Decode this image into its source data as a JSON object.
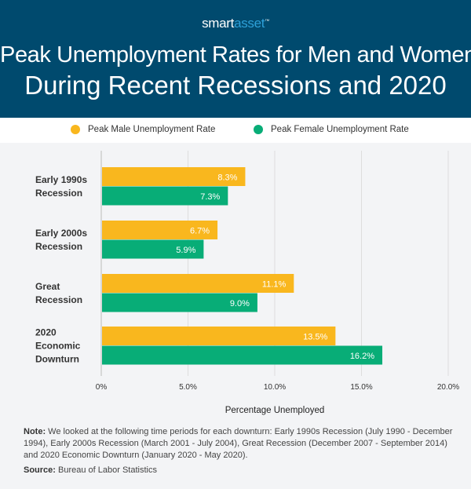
{
  "brand": {
    "part1": "smart",
    "part2": "asset",
    "tm": "™"
  },
  "title_line1": "Peak Unemployment Rates for Men and Women",
  "title_line2": "During Recent Recessions and 2020",
  "colors": {
    "male": "#f9b71e",
    "female": "#08ad77",
    "header": "#004a6e"
  },
  "chart_data": {
    "type": "bar",
    "orientation": "horizontal",
    "categories": [
      [
        "Early 1990s",
        "Recession"
      ],
      [
        "Early 2000s",
        "Recession"
      ],
      [
        "Great",
        "Recession"
      ],
      [
        "2020",
        "Economic",
        "Downturn"
      ]
    ],
    "series": [
      {
        "name": "Peak Male Unemployment Rate",
        "values": [
          8.3,
          6.7,
          11.1,
          13.5
        ],
        "labels": [
          "8.3%",
          "6.7%",
          "11.1%",
          "13.5%"
        ]
      },
      {
        "name": "Peak Female Unemployment Rate",
        "values": [
          7.3,
          5.9,
          9.0,
          16.2
        ],
        "labels": [
          "7.3%",
          "5.9%",
          "9.0%",
          "16.2%"
        ]
      }
    ],
    "xlim": [
      0,
      20
    ],
    "xticks": [
      0,
      5,
      10,
      15,
      20
    ],
    "xtick_labels": [
      "0%",
      "5.0%",
      "10.0%",
      "15.0%",
      "20.0%"
    ],
    "xlabel": "Percentage Unemployed",
    "grid": true,
    "legend_position": "top"
  },
  "note_label": "Note:",
  "note_text": " We looked at the following time periods for each downturn: Early 1990s Recession (July 1990 - December 1994), Early 2000s Recession (March 2001 - July 2004), Great Recession (December 2007 - September 2014) and 2020 Economic Downturn (January 2020 - May 2020).",
  "source_label": "Source:",
  "source_text": " Bureau of Labor Statistics"
}
